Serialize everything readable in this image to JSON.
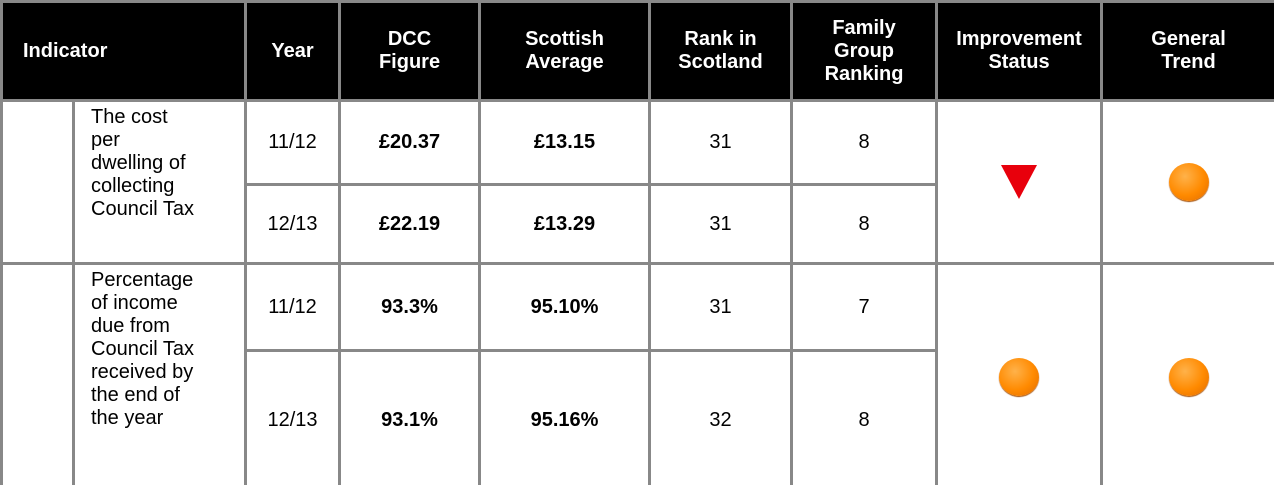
{
  "header": [
    "Indicator",
    "Year",
    "DCC\nFigure",
    "Scottish\nAverage",
    "Rank in\nScotland",
    "Family\nGroup\nRanking",
    "Improvement\nStatus",
    "General\nTrend"
  ],
  "indicators": [
    {
      "label": "The cost\nper\ndwelling of\ncollecting\nCouncil Tax",
      "rows": [
        [
          "11/12",
          "£20.37",
          "£13.15",
          "31",
          "8"
        ],
        [
          "12/13",
          "£22.19",
          "£13.29",
          "31",
          "8"
        ]
      ]
    },
    {
      "label": "Percentage\nof income\ndue from\nCouncil Tax\nreceived by\nthe end of\nthe year",
      "rows": [
        [
          "11/12",
          "93.3%",
          "95.10%",
          "31",
          "7"
        ],
        [
          "12/13",
          "93.1%",
          "95.16%",
          "32",
          "8"
        ]
      ]
    }
  ]
}
